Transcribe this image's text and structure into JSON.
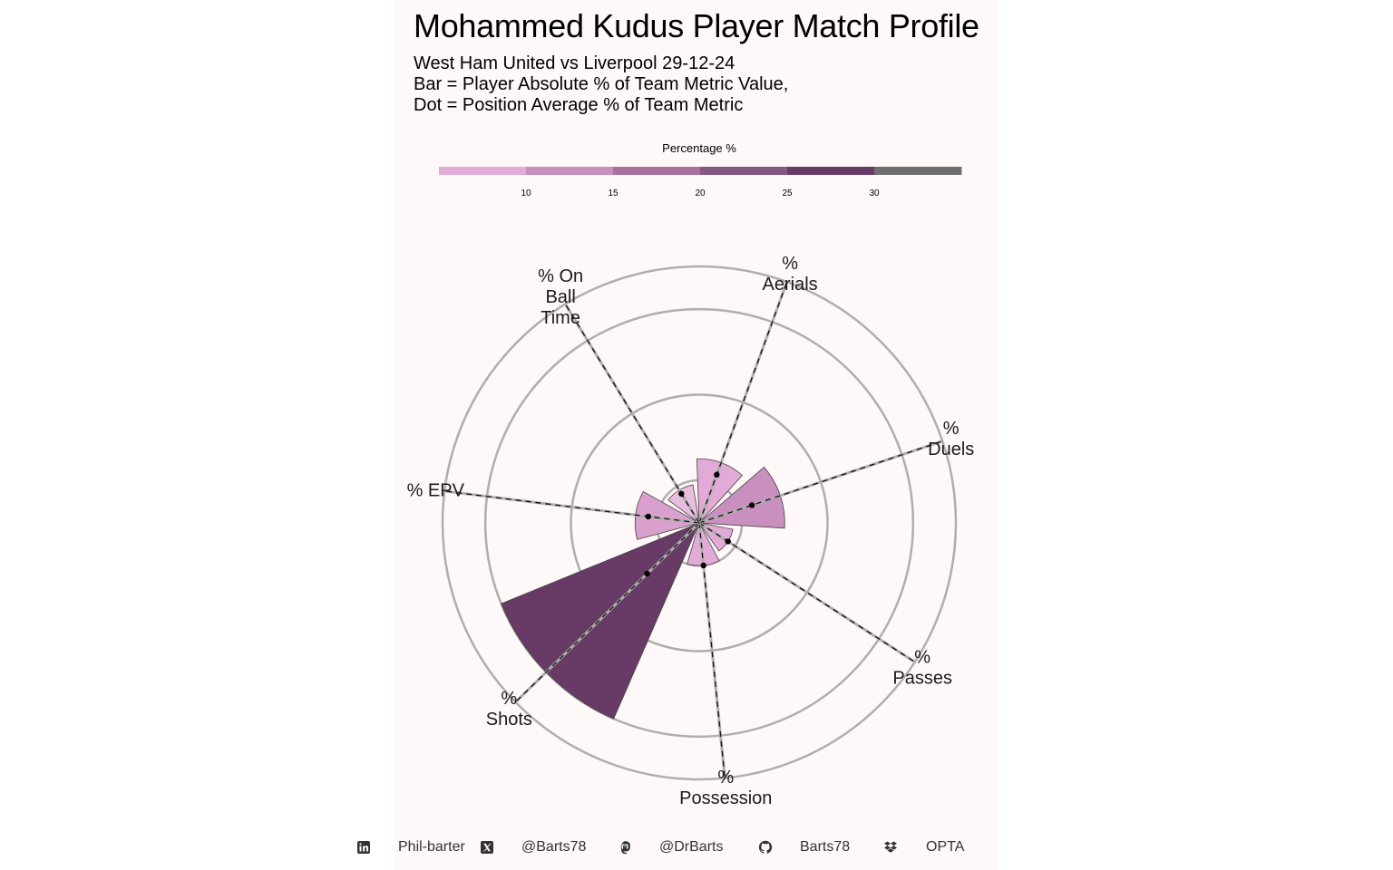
{
  "title": "Mohammed Kudus Player Match Profile",
  "subtitle_lines": [
    "West Ham United vs Liverpool 29-12-24",
    "Bar = Player Absolute % of Team Metric Value,",
    "Dot = Position Average % of Team Metric"
  ],
  "legend": {
    "title": "Percentage %",
    "ticks": [
      "10",
      "15",
      "20",
      "25",
      "30"
    ],
    "bins": [
      {
        "from": 5,
        "to": 10,
        "color": "#e2aad6"
      },
      {
        "from": 10,
        "to": 15,
        "color": "#c98fbe"
      },
      {
        "from": 15,
        "to": 20,
        "color": "#a9719f"
      },
      {
        "from": 20,
        "to": 25,
        "color": "#865885"
      },
      {
        "from": 25,
        "to": 30,
        "color": "#673b66"
      },
      {
        "from": 30,
        "to": 35,
        "color": "#6e6e6e"
      }
    ]
  },
  "chart_data": {
    "type": "polar-bar",
    "r_max": 60,
    "r_grid": [
      10,
      30,
      50
    ],
    "categories": [
      {
        "label_lines": [
          "%",
          "Aerials"
        ],
        "value": 15,
        "position_avg": 12,
        "color": "#e2aad6"
      },
      {
        "label_lines": [
          "%",
          "Duels"
        ],
        "value": 20,
        "position_avg": 13,
        "color": "#c98fbe"
      },
      {
        "label_lines": [
          "%",
          "Passes"
        ],
        "value": 8,
        "position_avg": 8,
        "color": "#e2aad6"
      },
      {
        "label_lines": [
          "%",
          "Possession"
        ],
        "value": 10,
        "position_avg": 10,
        "color": "#e2aad6"
      },
      {
        "label_lines": [
          "%",
          "Shots"
        ],
        "value": 50,
        "position_avg": 17,
        "color": "#673b66"
      },
      {
        "label_lines": [
          "% EPV"
        ],
        "value": 15,
        "position_avg": 12,
        "color": "#d9a0cd"
      },
      {
        "label_lines": [
          "% On",
          "Ball",
          "Time"
        ],
        "value": 9,
        "position_avg": 8,
        "color": "#e8bde0"
      }
    ]
  },
  "footer": {
    "linkedin_icon": "linkedin-icon",
    "linkedin": "Phil-barter",
    "x_icon": "x-twitter-icon",
    "x": "@Barts78",
    "mastodon_icon": "mastodon-icon",
    "mastodon": "@DrBarts",
    "github_icon": "github-icon",
    "github": "Barts78",
    "dropbox_icon": "dropbox-icon",
    "source": "OPTA"
  }
}
